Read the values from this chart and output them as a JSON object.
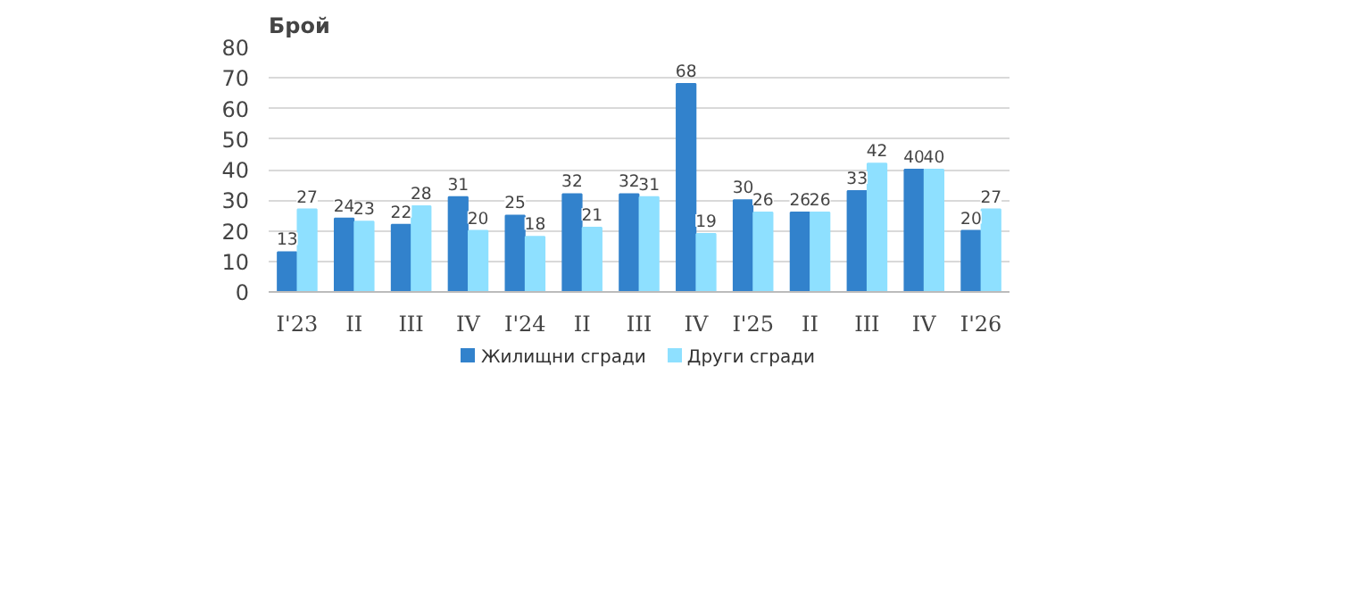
{
  "chart_data": {
    "type": "bar",
    "ylabel": "Брой",
    "categories": [
      "I'23",
      "II",
      "III",
      "IV",
      "I'24",
      "II",
      "III",
      "IV",
      "I'25",
      "II",
      "III",
      "IV",
      "I'26"
    ],
    "series": [
      {
        "name": "Жилищни сгради",
        "color": "#3282cc",
        "values": [
          13,
          24,
          22,
          31,
          25,
          32,
          32,
          68,
          30,
          26,
          33,
          40,
          20
        ]
      },
      {
        "name": "Други сгради",
        "color": "#8ee0ff",
        "values": [
          27,
          23,
          28,
          20,
          18,
          21,
          31,
          19,
          26,
          26,
          42,
          40,
          27
        ]
      }
    ],
    "ylim": [
      0,
      80
    ],
    "yticks": [
      0,
      10,
      20,
      30,
      40,
      50,
      60,
      70,
      80
    ],
    "grid": "y",
    "legend": "bottom",
    "data_labels": true
  }
}
